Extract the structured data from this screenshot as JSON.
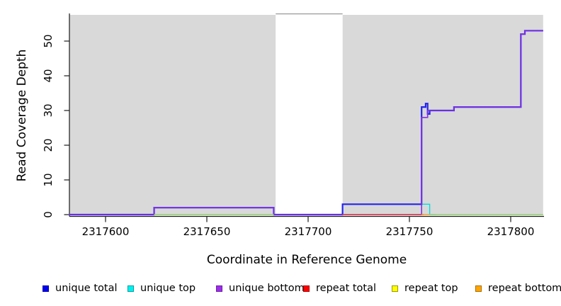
{
  "figure": {
    "xlabel": "Coordinate in Reference Genome",
    "ylabel": "Read Coverage Depth",
    "background_color": "#ffffff",
    "plot_background_color": "#d9d9d9",
    "gap_band_color": "#ffffff",
    "axis_color": "#1a1a1a"
  },
  "chart_data": {
    "type": "line",
    "step_interpolation": true,
    "title": "",
    "xlabel": "Coordinate in Reference Genome",
    "ylabel": "Read Coverage Depth",
    "xlim": [
      2317582,
      2317816
    ],
    "ylim": [
      0,
      58
    ],
    "x_ticks": [
      2317600,
      2317650,
      2317700,
      2317750,
      2317800
    ],
    "y_ticks": [
      0,
      10,
      20,
      30,
      40,
      50
    ],
    "grid": false,
    "legend_position": "bottom",
    "shaded_regions": [
      {
        "from": 2317582,
        "to": 2317684,
        "color": "#d9d9d9"
      },
      {
        "from": 2317717,
        "to": 2317816,
        "color": "#d9d9d9"
      }
    ],
    "gap_region": {
      "from": 2317684,
      "to": 2317717,
      "color": "#ffffff",
      "top_border_color": "#a0a0a0"
    },
    "series": [
      {
        "name": "unique top",
        "color": "#00dede",
        "line_width": 1.4,
        "segments": [
          [
            [
              2317750,
              3
            ],
            [
              2317760,
              0
            ],
            [
              2317763,
              0
            ]
          ]
        ]
      },
      {
        "name": "unique total",
        "color": "#2424ee",
        "line_width": 2.2,
        "segments": [
          [
            [
              2317582,
              0
            ],
            [
              2317624,
              2
            ],
            [
              2317683,
              0
            ],
            [
              2317717,
              3
            ],
            [
              2317756,
              31
            ],
            [
              2317758,
              32
            ],
            [
              2317759,
              29
            ],
            [
              2317760,
              30
            ],
            [
              2317772,
              31
            ],
            [
              2317805,
              52
            ],
            [
              2317807,
              53
            ],
            [
              2317816,
              53
            ]
          ]
        ]
      },
      {
        "name": "unique bottom",
        "color": "#8430e0",
        "line_width": 1.6,
        "segments": [
          [
            [
              2317582,
              0
            ],
            [
              2317624,
              2
            ],
            [
              2317683,
              0
            ],
            [
              2317756,
              28
            ],
            [
              2317759,
              30
            ],
            [
              2317772,
              31
            ],
            [
              2317805,
              52
            ],
            [
              2317807,
              53
            ],
            [
              2317816,
              53
            ]
          ]
        ]
      },
      {
        "name": "repeat total",
        "color": "#e33e3e",
        "line_width": 1.4,
        "segments": [
          [
            [
              2317717,
              0
            ],
            [
              2317757,
              0
            ]
          ]
        ]
      },
      {
        "name": "repeat top",
        "color": "#f0f000",
        "line_width": 1.4,
        "segments": [
          [
            [
              2317624,
              0
            ],
            [
              2317683,
              0
            ]
          ],
          [
            [
              2317760,
              0
            ],
            [
              2317816,
              0
            ]
          ]
        ]
      },
      {
        "name": "repeat bottom",
        "color": "#ff9d1e",
        "line_width": 1.4,
        "segments": [
          [
            [
              2317756,
              0
            ],
            [
              2317760,
              0
            ]
          ]
        ]
      }
    ],
    "zero_line_overlap": {
      "color": "#8fd08f",
      "line_width": 1.4,
      "segments": [
        [
          [
            2317624,
            0
          ],
          [
            2317683,
            0
          ]
        ],
        [
          [
            2317760,
            0
          ],
          [
            2317816,
            0
          ]
        ]
      ]
    }
  },
  "legend": {
    "items": [
      {
        "label": "unique total",
        "fill": "#0000f0",
        "border": "#0000a8"
      },
      {
        "label": "unique top",
        "fill": "#00f0f0",
        "border": "#00a0a0"
      },
      {
        "label": "unique bottom",
        "fill": "#9b2fe8",
        "border": "#6d20a5"
      },
      {
        "label": "repeat total",
        "fill": "#ff0000",
        "border": "#aa0000"
      },
      {
        "label": "repeat top",
        "fill": "#ffff00",
        "border": "#999900"
      },
      {
        "label": "repeat bottom",
        "fill": "#ffa500",
        "border": "#aa6e00"
      }
    ]
  }
}
